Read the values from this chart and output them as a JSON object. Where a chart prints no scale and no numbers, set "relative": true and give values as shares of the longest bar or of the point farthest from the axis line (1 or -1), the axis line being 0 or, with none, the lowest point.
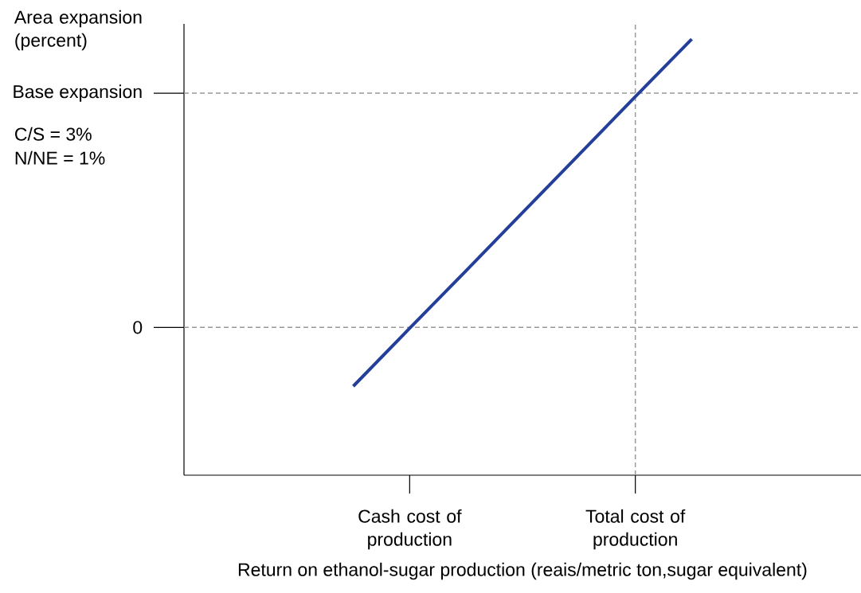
{
  "chart_data": {
    "type": "line",
    "relative": true,
    "xlabel": "Return on ethanol-sugar production (reais/metric ton,sugar equivalent)",
    "ylabel": "Area expansion (percent)",
    "categories": [
      null,
      null,
      null,
      null,
      "Cash cost of production",
      null,
      null,
      null,
      "Total cost of production",
      null,
      null,
      null,
      null
    ],
    "series": [
      {
        "color": "#233f99",
        "values": [
          null,
          null,
          null,
          0.204,
          0.337,
          0.469,
          0.602,
          0.735,
          0.868,
          1.0,
          null,
          null,
          null
        ]
      }
    ],
    "ref_lines": [
      {
        "axis": "y",
        "value": 0.339,
        "label": "0",
        "color": "#999999",
        "line_style": "dashed"
      },
      {
        "axis": "y",
        "value": 0.876,
        "label": "Base expansion",
        "color": "#999999",
        "line_style": "dashed"
      },
      {
        "axis": "x",
        "value": "Total cost of production",
        "color": "#999999",
        "line_style": "dashed"
      }
    ],
    "annotations": [
      "C/S = 3%",
      "N/NE = 1%"
    ],
    "grid": false,
    "marker": "none",
    "line_style": "solid"
  }
}
